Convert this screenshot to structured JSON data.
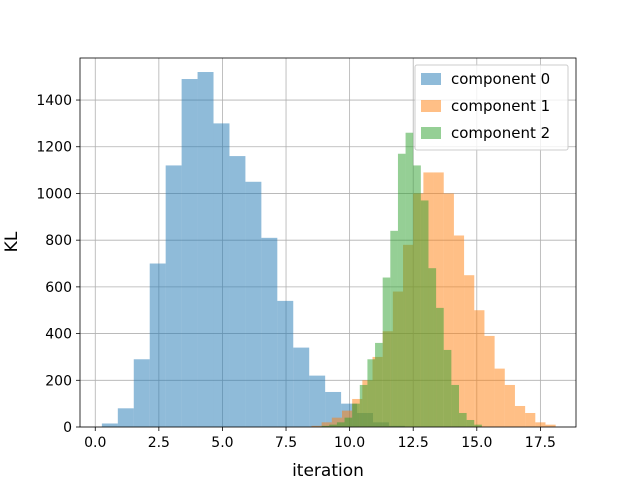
{
  "chart_data": {
    "type": "histogram",
    "xlabel": "iteration",
    "ylabel": "KL",
    "xlim": [
      -0.6,
      18.9
    ],
    "ylim": [
      0,
      1580
    ],
    "xticks": [
      0.0,
      2.5,
      5.0,
      7.5,
      10.0,
      12.5,
      15.0,
      17.5
    ],
    "xtick_labels": [
      "0.0",
      "2.5",
      "5.0",
      "7.5",
      "10.0",
      "12.5",
      "15.0",
      "17.5"
    ],
    "yticks": [
      0,
      200,
      400,
      600,
      800,
      1000,
      1200,
      1400
    ],
    "ytick_labels": [
      "0",
      "200",
      "400",
      "600",
      "800",
      "1000",
      "1200",
      "1400"
    ],
    "grid": true,
    "legend_position": "top-right",
    "colors": [
      "#1f77b4",
      "#ff7f0e",
      "#2ca02c"
    ],
    "bar_alpha": 0.5,
    "series": [
      {
        "name": "component 0",
        "bins_start": 0.26,
        "bin_width": 0.627,
        "counts": [
          15,
          80,
          290,
          700,
          1120,
          1490,
          1520,
          1300,
          1160,
          1050,
          810,
          540,
          340,
          220,
          150,
          100,
          60,
          20,
          5
        ]
      },
      {
        "name": "component 1",
        "bins_start": 8.5,
        "bin_width": 0.4,
        "counts": [
          5,
          20,
          40,
          70,
          120,
          200,
          300,
          410,
          580,
          780,
          1000,
          1090,
          1090,
          1000,
          820,
          650,
          500,
          390,
          250,
          180,
          90,
          60,
          20,
          10
        ]
      },
      {
        "name": "component 2",
        "bins_start": 8.9,
        "bin_width": 0.3,
        "counts": [
          5,
          10,
          20,
          40,
          100,
          180,
          290,
          360,
          640,
          840,
          1170,
          1260,
          1120,
          970,
          680,
          510,
          330,
          180,
          60,
          30,
          10
        ]
      }
    ]
  }
}
